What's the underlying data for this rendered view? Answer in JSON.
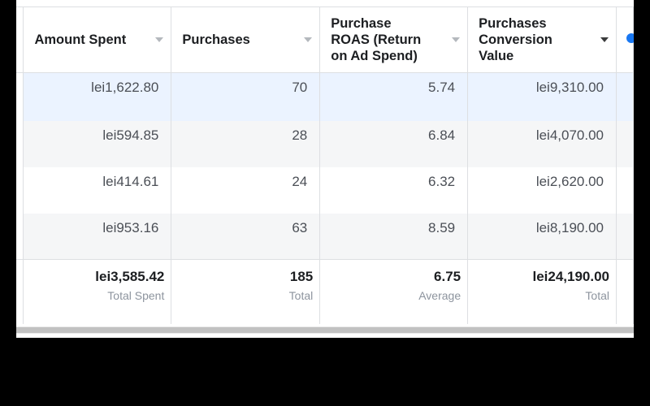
{
  "columns": [
    {
      "label": "Amount Spent",
      "sorted": false
    },
    {
      "label": "Purchases",
      "sorted": false
    },
    {
      "label": "Purchase ROAS (Return on Ad Spend)",
      "sorted": false
    },
    {
      "label": "Purchases Conversion Value",
      "sorted": true
    }
  ],
  "rows": [
    [
      "lei1,622.80",
      "70",
      "5.74",
      "lei9,310.00"
    ],
    [
      "lei594.85",
      "28",
      "6.84",
      "lei4,070.00"
    ],
    [
      "lei414.61",
      "24",
      "6.32",
      "lei2,620.00"
    ],
    [
      "lei953.16",
      "63",
      "8.59",
      "lei8,190.00"
    ]
  ],
  "totals": [
    {
      "value": "lei3,585.42",
      "caption": "Total Spent"
    },
    {
      "value": "185",
      "caption": "Total"
    },
    {
      "value": "6.75",
      "caption": "Average"
    },
    {
      "value": "lei24,190.00",
      "caption": "Total"
    }
  ],
  "icons": {
    "sort": "caret-down-icon",
    "add_column": "add-column-icon"
  },
  "colors": {
    "selected_row": "#ebf3ff",
    "alt_row": "#f5f6f7",
    "accent": "#1877f2"
  }
}
